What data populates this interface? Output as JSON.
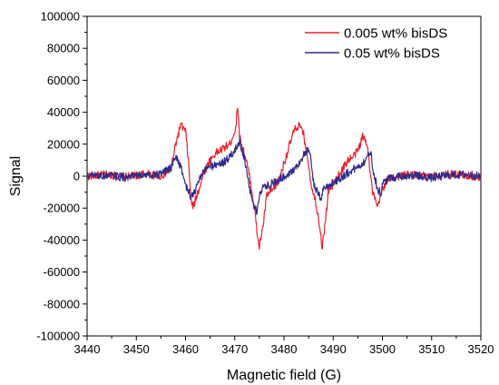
{
  "chart_data": {
    "type": "line",
    "title": "",
    "xlabel": "Magnetic field (G)",
    "ylabel": "Signal",
    "xlim": [
      3440,
      3520
    ],
    "ylim": [
      -100000,
      100000
    ],
    "x_ticks": [
      "3440",
      "3450",
      "3460",
      "3470",
      "3480",
      "3490",
      "3500",
      "3510",
      "3520"
    ],
    "y_ticks": [
      "100000",
      "80000",
      "60000",
      "40000",
      "20000",
      "0",
      "-20000",
      "-40000",
      "-60000",
      "-80000",
      "-100000"
    ],
    "grid": false,
    "legend_position": "top-right",
    "series": [
      {
        "name": "0.005 wt% bisDS",
        "color": "#e8202a",
        "points": [
          [
            3440,
            0
          ],
          [
            3444,
            1000
          ],
          [
            3448,
            -500
          ],
          [
            3452,
            1500
          ],
          [
            3455,
            0
          ],
          [
            3457,
            4000
          ],
          [
            3458,
            20000
          ],
          [
            3459,
            32000
          ],
          [
            3460,
            28000
          ],
          [
            3460.6,
            10000
          ],
          [
            3461,
            -12000
          ],
          [
            3461.5,
            -20000
          ],
          [
            3462,
            -15000
          ],
          [
            3463,
            -5000
          ],
          [
            3464,
            4000
          ],
          [
            3465,
            10000
          ],
          [
            3466,
            14000
          ],
          [
            3467,
            16000
          ],
          [
            3468,
            18000
          ],
          [
            3469,
            20000
          ],
          [
            3470.2,
            30000
          ],
          [
            3470.6,
            45000
          ],
          [
            3471,
            24000
          ],
          [
            3472,
            14000
          ],
          [
            3473,
            0
          ],
          [
            3474,
            -20000
          ],
          [
            3474.7,
            -40000
          ],
          [
            3475,
            -44000
          ],
          [
            3475.8,
            -30000
          ],
          [
            3476.5,
            -12000
          ],
          [
            3478,
            -8000
          ],
          [
            3479,
            -2000
          ],
          [
            3480,
            8000
          ],
          [
            3481,
            18000
          ],
          [
            3482,
            28000
          ],
          [
            3483,
            32000
          ],
          [
            3484,
            26000
          ],
          [
            3485,
            8000
          ],
          [
            3485.5,
            -5000
          ],
          [
            3486,
            -10000
          ],
          [
            3487,
            -25000
          ],
          [
            3487.8,
            -45000
          ],
          [
            3488.5,
            -25000
          ],
          [
            3489,
            -10000
          ],
          [
            3490,
            -5000
          ],
          [
            3491,
            0
          ],
          [
            3492,
            5000
          ],
          [
            3493,
            10000
          ],
          [
            3494,
            12000
          ],
          [
            3495,
            16000
          ],
          [
            3496,
            25000
          ],
          [
            3497,
            20000
          ],
          [
            3497.5,
            2000
          ],
          [
            3498,
            -10000
          ],
          [
            3499,
            -20000
          ],
          [
            3500,
            -8000
          ],
          [
            3501,
            -2000
          ],
          [
            3503,
            0
          ],
          [
            3506,
            1000
          ],
          [
            3510,
            -500
          ],
          [
            3514,
            1500
          ],
          [
            3518,
            0
          ],
          [
            3520,
            -1000
          ]
        ]
      },
      {
        "name": "0.05 wt% bisDS",
        "color": "#2e2a8c",
        "points": [
          [
            3440,
            0
          ],
          [
            3444,
            500
          ],
          [
            3448,
            -1000
          ],
          [
            3452,
            800
          ],
          [
            3455,
            1000
          ],
          [
            3457,
            5000
          ],
          [
            3458,
            13000
          ],
          [
            3459,
            6000
          ],
          [
            3460,
            -5000
          ],
          [
            3461,
            -13000
          ],
          [
            3462,
            -9000
          ],
          [
            3463,
            0
          ],
          [
            3464,
            4000
          ],
          [
            3465,
            6000
          ],
          [
            3466,
            7000
          ],
          [
            3467,
            8000
          ],
          [
            3468,
            9000
          ],
          [
            3469,
            12000
          ],
          [
            3470,
            16000
          ],
          [
            3471,
            22000
          ],
          [
            3472,
            10000
          ],
          [
            3473,
            -8000
          ],
          [
            3474,
            -20000
          ],
          [
            3474.5,
            -22000
          ],
          [
            3475,
            -12000
          ],
          [
            3476,
            -6000
          ],
          [
            3478,
            -4000
          ],
          [
            3480,
            0
          ],
          [
            3482,
            4000
          ],
          [
            3483,
            8000
          ],
          [
            3484,
            13000
          ],
          [
            3485,
            16000
          ],
          [
            3485.5,
            10000
          ],
          [
            3486,
            -4000
          ],
          [
            3487,
            -12000
          ],
          [
            3487.5,
            -14000
          ],
          [
            3488,
            -8000
          ],
          [
            3490,
            -4000
          ],
          [
            3492,
            0
          ],
          [
            3494,
            4000
          ],
          [
            3496,
            8000
          ],
          [
            3497,
            12000
          ],
          [
            3497.6,
            16000
          ],
          [
            3498,
            6000
          ],
          [
            3499,
            -8000
          ],
          [
            3499.7,
            -11000
          ],
          [
            3500,
            -5000
          ],
          [
            3501,
            -2000
          ],
          [
            3503,
            0
          ],
          [
            3506,
            500
          ],
          [
            3510,
            -1000
          ],
          [
            3514,
            800
          ],
          [
            3518,
            1000
          ],
          [
            3520,
            -500
          ]
        ]
      }
    ]
  }
}
